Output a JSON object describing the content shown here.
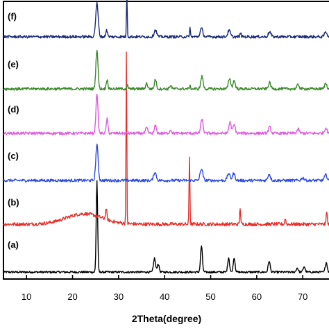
{
  "chart_data": {
    "type": "line",
    "title": "",
    "xlabel": "2Theta(degree)",
    "ylabel": "",
    "xlim": [
      5,
      76
    ],
    "x_ticks": [
      10,
      20,
      30,
      40,
      50,
      60,
      70
    ],
    "x_tick_labels": [
      "10",
      "20",
      "30",
      "40",
      "50",
      "60",
      "70"
    ],
    "grid": false,
    "legend": "none",
    "series": [
      {
        "label": "(a)",
        "color": "#000000",
        "baseline": 0.5,
        "noise": 0.15,
        "hump": null,
        "peaks": [
          {
            "x": 25.3,
            "h": 13.2,
            "w": 0.22
          },
          {
            "x": 37.8,
            "h": 2.0,
            "w": 0.3
          },
          {
            "x": 38.6,
            "h": 1.2,
            "w": 0.3
          },
          {
            "x": 48.0,
            "h": 3.8,
            "w": 0.28
          },
          {
            "x": 53.9,
            "h": 2.1,
            "w": 0.28
          },
          {
            "x": 55.1,
            "h": 2.1,
            "w": 0.28
          },
          {
            "x": 62.7,
            "h": 1.6,
            "w": 0.3
          },
          {
            "x": 68.8,
            "h": 0.6,
            "w": 0.3
          },
          {
            "x": 70.3,
            "h": 0.8,
            "w": 0.3
          },
          {
            "x": 75.1,
            "h": 1.4,
            "w": 0.3
          }
        ]
      },
      {
        "label": "(b)",
        "color": "#e8302a",
        "baseline": 0.6,
        "noise": 0.25,
        "hump": {
          "x": 22.5,
          "h": 1.5,
          "w": 5.5
        },
        "peaks": [
          {
            "x": 27.3,
            "h": 1.6,
            "w": 0.2
          },
          {
            "x": 31.7,
            "h": 24.5,
            "w": 0.12
          },
          {
            "x": 45.4,
            "h": 9.7,
            "w": 0.13
          },
          {
            "x": 56.4,
            "h": 2.4,
            "w": 0.15
          },
          {
            "x": 66.2,
            "h": 0.9,
            "w": 0.15
          },
          {
            "x": 75.2,
            "h": 2.0,
            "w": 0.15
          }
        ]
      },
      {
        "label": "(c)",
        "color": "#2d4be0",
        "baseline": 0.5,
        "noise": 0.2,
        "hump": null,
        "peaks": [
          {
            "x": 25.3,
            "h": 5.2,
            "w": 0.35
          },
          {
            "x": 37.9,
            "h": 1.2,
            "w": 0.4
          },
          {
            "x": 48.0,
            "h": 1.7,
            "w": 0.4
          },
          {
            "x": 53.9,
            "h": 1.0,
            "w": 0.4
          },
          {
            "x": 55.0,
            "h": 1.0,
            "w": 0.4
          },
          {
            "x": 62.7,
            "h": 0.9,
            "w": 0.4
          },
          {
            "x": 70.0,
            "h": 0.4,
            "w": 0.4
          },
          {
            "x": 75.0,
            "h": 0.8,
            "w": 0.4
          }
        ]
      },
      {
        "label": "(d)",
        "color": "#e05ae0",
        "baseline": 0.5,
        "noise": 0.2,
        "hump": null,
        "peaks": [
          {
            "x": 25.3,
            "h": 5.8,
            "w": 0.3
          },
          {
            "x": 27.5,
            "h": 2.1,
            "w": 0.25
          },
          {
            "x": 36.1,
            "h": 0.8,
            "w": 0.3
          },
          {
            "x": 38.0,
            "h": 1.1,
            "w": 0.3
          },
          {
            "x": 41.3,
            "h": 0.5,
            "w": 0.3
          },
          {
            "x": 48.1,
            "h": 2.0,
            "w": 0.35
          },
          {
            "x": 54.2,
            "h": 1.6,
            "w": 0.35
          },
          {
            "x": 55.1,
            "h": 1.2,
            "w": 0.35
          },
          {
            "x": 62.8,
            "h": 0.9,
            "w": 0.35
          },
          {
            "x": 69.0,
            "h": 0.6,
            "w": 0.35
          },
          {
            "x": 75.0,
            "h": 0.8,
            "w": 0.35
          }
        ]
      },
      {
        "label": "(e)",
        "color": "#3a8a2a",
        "baseline": 0.5,
        "noise": 0.2,
        "hump": null,
        "peaks": [
          {
            "x": 25.3,
            "h": 5.7,
            "w": 0.32
          },
          {
            "x": 27.5,
            "h": 1.4,
            "w": 0.25
          },
          {
            "x": 31.9,
            "h": 0.5,
            "w": 0.2
          },
          {
            "x": 36.1,
            "h": 0.8,
            "w": 0.3
          },
          {
            "x": 38.0,
            "h": 1.4,
            "w": 0.3
          },
          {
            "x": 41.3,
            "h": 0.5,
            "w": 0.3
          },
          {
            "x": 45.5,
            "h": 0.4,
            "w": 0.2
          },
          {
            "x": 48.1,
            "h": 1.8,
            "w": 0.35
          },
          {
            "x": 54.1,
            "h": 1.5,
            "w": 0.35
          },
          {
            "x": 55.1,
            "h": 1.2,
            "w": 0.35
          },
          {
            "x": 62.8,
            "h": 0.9,
            "w": 0.35
          },
          {
            "x": 69.0,
            "h": 0.6,
            "w": 0.35
          },
          {
            "x": 75.0,
            "h": 0.8,
            "w": 0.35
          }
        ]
      },
      {
        "label": "(f)",
        "color": "#1c2a7a",
        "baseline": 0.5,
        "noise": 0.2,
        "hump": null,
        "peaks": [
          {
            "x": 25.3,
            "h": 4.8,
            "w": 0.38
          },
          {
            "x": 27.4,
            "h": 1.0,
            "w": 0.25
          },
          {
            "x": 31.8,
            "h": 6.9,
            "w": 0.12
          },
          {
            "x": 38.0,
            "h": 1.0,
            "w": 0.4
          },
          {
            "x": 45.5,
            "h": 1.3,
            "w": 0.14
          },
          {
            "x": 48.0,
            "h": 1.2,
            "w": 0.4
          },
          {
            "x": 54.0,
            "h": 0.9,
            "w": 0.4
          },
          {
            "x": 56.5,
            "h": 0.5,
            "w": 0.2
          },
          {
            "x": 62.8,
            "h": 0.7,
            "w": 0.4
          },
          {
            "x": 75.0,
            "h": 0.7,
            "w": 0.4
          }
        ]
      }
    ]
  }
}
